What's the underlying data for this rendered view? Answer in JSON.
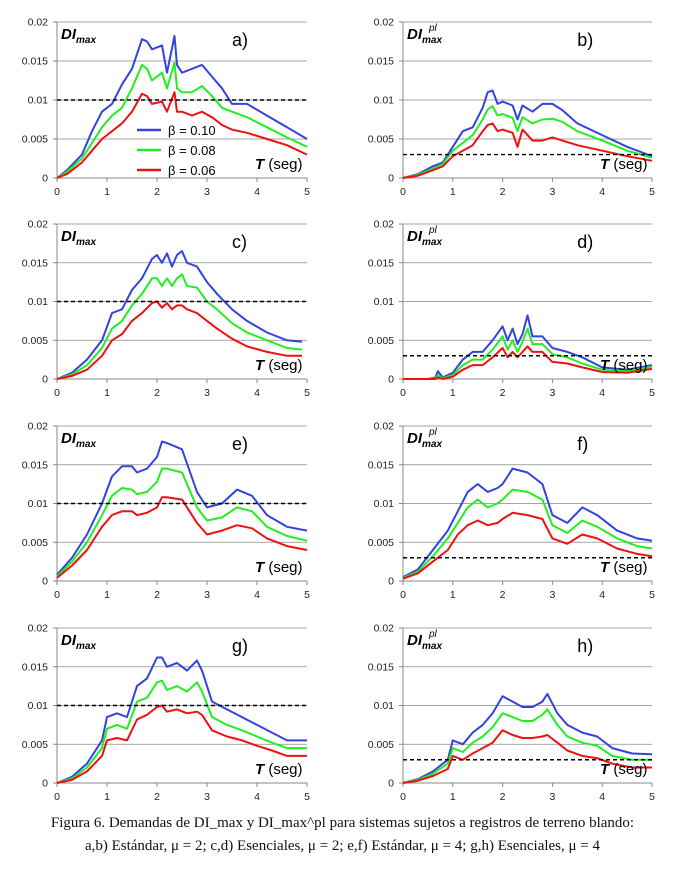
{
  "series_names": [
    "β = 0.10",
    "β = 0.08",
    "β = 0.06"
  ],
  "series_colors": [
    "#3344dd",
    "#22ee22",
    "#ee1111"
  ],
  "threshold_color": "#000000",
  "caption": {
    "line1": "Figura 6. Demandas de  DI_max  y  DI_max^pl  para sistemas sujetos a registros de terreno blando:",
    "line2": "a,b) Estándar, μ = 2; c,d) Esenciales, μ = 2; e,f) Estándar, μ = 4; g,h) Esenciales, μ = 4"
  },
  "chart_data": [
    {
      "id": "a",
      "type": "line",
      "label": "a)",
      "ylabel": "DImax",
      "xlabel": "T (seg)",
      "xlim": [
        0,
        5
      ],
      "ylim": [
        0,
        0.02
      ],
      "xticks": [
        "0",
        "1",
        "2",
        "3",
        "4",
        "5"
      ],
      "yticks": [
        "0",
        "0.005",
        "0.01",
        "0.015",
        "0.02"
      ],
      "threshold": 0.01,
      "legend": true,
      "x": [
        0,
        0.2,
        0.5,
        0.7,
        0.9,
        1.1,
        1.3,
        1.5,
        1.7,
        1.8,
        1.9,
        2.1,
        2.2,
        2.35,
        2.4,
        2.5,
        2.7,
        2.9,
        3.1,
        3.3,
        3.5,
        3.8,
        4.2,
        4.6,
        5
      ],
      "series": [
        {
          "name": "β = 0.10",
          "values": [
            0,
            0.001,
            0.003,
            0.006,
            0.0085,
            0.0095,
            0.012,
            0.014,
            0.0178,
            0.0175,
            0.0165,
            0.017,
            0.0135,
            0.0182,
            0.0145,
            0.0135,
            0.014,
            0.0145,
            0.013,
            0.0115,
            0.0095,
            0.0095,
            0.008,
            0.0065,
            0.005
          ]
        },
        {
          "name": "β = 0.08",
          "values": [
            0,
            0.0008,
            0.0025,
            0.0045,
            0.0065,
            0.008,
            0.009,
            0.0115,
            0.0145,
            0.014,
            0.0125,
            0.0135,
            0.0115,
            0.0148,
            0.0115,
            0.011,
            0.011,
            0.0118,
            0.0105,
            0.009,
            0.0085,
            0.0078,
            0.0065,
            0.0052,
            0.004
          ]
        },
        {
          "name": "β = 0.06",
          "values": [
            0,
            0.0005,
            0.002,
            0.0035,
            0.005,
            0.006,
            0.007,
            0.0085,
            0.0108,
            0.0105,
            0.0095,
            0.0098,
            0.0085,
            0.011,
            0.0085,
            0.0085,
            0.008,
            0.0085,
            0.0078,
            0.0068,
            0.0062,
            0.0058,
            0.005,
            0.0042,
            0.003
          ]
        }
      ]
    },
    {
      "id": "b",
      "type": "line",
      "label": "b)",
      "ylabel": "DImax pl",
      "xlabel": "T (seg)",
      "xlim": [
        0,
        5
      ],
      "ylim": [
        0,
        0.02
      ],
      "xticks": [
        "0",
        "1",
        "2",
        "3",
        "4",
        "5"
      ],
      "yticks": [
        "0",
        "0.005",
        "0.01",
        "0.015",
        "0.02"
      ],
      "threshold": 0.003,
      "legend": false,
      "x": [
        0,
        0.3,
        0.6,
        0.8,
        1.0,
        1.2,
        1.4,
        1.6,
        1.7,
        1.8,
        1.9,
        2.0,
        2.2,
        2.3,
        2.4,
        2.6,
        2.8,
        3.0,
        3.2,
        3.5,
        4.0,
        4.5,
        5
      ],
      "series": [
        {
          "name": "β = 0.10",
          "values": [
            0,
            0.0005,
            0.0015,
            0.002,
            0.004,
            0.006,
            0.0065,
            0.009,
            0.011,
            0.0112,
            0.0095,
            0.0098,
            0.0093,
            0.0075,
            0.0093,
            0.0085,
            0.0095,
            0.0095,
            0.0087,
            0.007,
            0.0055,
            0.004,
            0.0028
          ]
        },
        {
          "name": "β = 0.08",
          "values": [
            0,
            0.0004,
            0.0012,
            0.0018,
            0.0035,
            0.0045,
            0.0055,
            0.0075,
            0.0088,
            0.0092,
            0.008,
            0.0082,
            0.0077,
            0.006,
            0.0078,
            0.007,
            0.0075,
            0.0076,
            0.0072,
            0.006,
            0.0048,
            0.0035,
            0.0026
          ]
        },
        {
          "name": "β = 0.06",
          "values": [
            0,
            0.0003,
            0.001,
            0.0015,
            0.0028,
            0.0035,
            0.0042,
            0.006,
            0.0068,
            0.007,
            0.006,
            0.0062,
            0.0058,
            0.004,
            0.0062,
            0.0048,
            0.0048,
            0.0052,
            0.0048,
            0.0042,
            0.0035,
            0.0028,
            0.0022
          ]
        }
      ]
    },
    {
      "id": "c",
      "type": "line",
      "label": "c)",
      "ylabel": "DImax",
      "xlabel": "T (seg)",
      "xlim": [
        0,
        5
      ],
      "ylim": [
        0,
        0.02
      ],
      "xticks": [
        "0",
        "1",
        "2",
        "3",
        "4",
        "5"
      ],
      "yticks": [
        "0",
        "0.005",
        "0.01",
        "0.015",
        "0.02"
      ],
      "threshold": 0.01,
      "legend": false,
      "x": [
        0,
        0.3,
        0.6,
        0.9,
        1.1,
        1.3,
        1.5,
        1.7,
        1.9,
        2.0,
        2.1,
        2.2,
        2.3,
        2.4,
        2.5,
        2.6,
        2.8,
        3.0,
        3.2,
        3.5,
        3.8,
        4.2,
        4.6,
        4.9
      ],
      "series": [
        {
          "name": "β = 0.10",
          "values": [
            0,
            0.0008,
            0.0025,
            0.005,
            0.0085,
            0.009,
            0.0115,
            0.013,
            0.0155,
            0.016,
            0.015,
            0.0162,
            0.0145,
            0.016,
            0.0165,
            0.015,
            0.0145,
            0.0125,
            0.011,
            0.009,
            0.0075,
            0.006,
            0.005,
            0.0048
          ]
        },
        {
          "name": "β = 0.08",
          "values": [
            0,
            0.0006,
            0.0018,
            0.004,
            0.0065,
            0.0075,
            0.0095,
            0.011,
            0.013,
            0.013,
            0.012,
            0.013,
            0.012,
            0.013,
            0.0135,
            0.012,
            0.0118,
            0.01,
            0.009,
            0.0072,
            0.006,
            0.005,
            0.004,
            0.0038
          ]
        },
        {
          "name": "β = 0.06",
          "values": [
            0,
            0.0004,
            0.0012,
            0.003,
            0.005,
            0.0058,
            0.0075,
            0.0085,
            0.0098,
            0.01,
            0.0092,
            0.0098,
            0.009,
            0.0095,
            0.0095,
            0.009,
            0.0085,
            0.0075,
            0.0065,
            0.0052,
            0.0042,
            0.0035,
            0.003,
            0.003
          ]
        }
      ]
    },
    {
      "id": "d",
      "type": "line",
      "label": "d)",
      "ylabel": "DImax pl",
      "xlabel": "T (seg)",
      "xlim": [
        0,
        5
      ],
      "ylim": [
        0,
        0.02
      ],
      "xticks": [
        "0",
        "1",
        "2",
        "3",
        "4",
        "5"
      ],
      "yticks": [
        "0",
        "0.005",
        "0.01",
        "0.015",
        "0.02"
      ],
      "threshold": 0.003,
      "legend": false,
      "x": [
        0,
        0.5,
        0.65,
        0.7,
        0.8,
        1.0,
        1.2,
        1.4,
        1.6,
        1.8,
        2.0,
        2.1,
        2.2,
        2.3,
        2.4,
        2.5,
        2.6,
        2.8,
        3.0,
        3.3,
        3.6,
        4.0,
        4.5,
        5
      ],
      "series": [
        {
          "name": "β = 0.10",
          "values": [
            0,
            0,
            0.0002,
            0.001,
            0.0002,
            0.0008,
            0.0025,
            0.0035,
            0.0035,
            0.005,
            0.0068,
            0.005,
            0.0065,
            0.0045,
            0.0058,
            0.0082,
            0.0055,
            0.0055,
            0.004,
            0.0035,
            0.0028,
            0.0015,
            0.0012,
            0.0018
          ]
        },
        {
          "name": "β = 0.08",
          "values": [
            0,
            0,
            0.0001,
            0.0005,
            0.0001,
            0.0005,
            0.0018,
            0.0025,
            0.0025,
            0.0038,
            0.0055,
            0.0038,
            0.005,
            0.0035,
            0.0048,
            0.0065,
            0.0045,
            0.0045,
            0.0032,
            0.0028,
            0.002,
            0.0012,
            0.001,
            0.0016
          ]
        },
        {
          "name": "β = 0.06",
          "values": [
            0,
            0,
            0,
            0.0002,
            0,
            0.0003,
            0.0012,
            0.0018,
            0.0018,
            0.0028,
            0.004,
            0.0028,
            0.0035,
            0.0028,
            0.0035,
            0.0042,
            0.0035,
            0.0035,
            0.0022,
            0.002,
            0.0015,
            0.0009,
            0.0008,
            0.0013
          ]
        }
      ]
    },
    {
      "id": "e",
      "type": "line",
      "label": "e)",
      "ylabel": "DImax",
      "xlabel": "T (seg)",
      "xlim": [
        0,
        5
      ],
      "ylim": [
        0,
        0.02
      ],
      "xticks": [
        "0",
        "1",
        "2",
        "3",
        "4",
        "5"
      ],
      "yticks": [
        "0",
        "0.005",
        "0.01",
        "0.015",
        "0.02"
      ],
      "threshold": 0.01,
      "legend": false,
      "x": [
        0,
        0.3,
        0.6,
        0.9,
        1.1,
        1.3,
        1.5,
        1.6,
        1.8,
        2.0,
        2.1,
        2.2,
        2.5,
        2.8,
        3.0,
        3.3,
        3.6,
        3.9,
        4.2,
        4.6,
        5
      ],
      "series": [
        {
          "name": "β = 0.10",
          "values": [
            0.0008,
            0.003,
            0.006,
            0.01,
            0.0135,
            0.0148,
            0.0148,
            0.014,
            0.0145,
            0.016,
            0.018,
            0.0178,
            0.017,
            0.0115,
            0.0095,
            0.01,
            0.0118,
            0.011,
            0.0085,
            0.007,
            0.0065
          ]
        },
        {
          "name": "β = 0.08",
          "values": [
            0.0006,
            0.0025,
            0.005,
            0.0085,
            0.011,
            0.012,
            0.0118,
            0.0112,
            0.0115,
            0.0128,
            0.0145,
            0.0145,
            0.014,
            0.0095,
            0.0078,
            0.0082,
            0.0095,
            0.009,
            0.007,
            0.0058,
            0.0052
          ]
        },
        {
          "name": "β = 0.06",
          "values": [
            0.0004,
            0.002,
            0.004,
            0.007,
            0.0085,
            0.009,
            0.009,
            0.0085,
            0.0088,
            0.0095,
            0.0108,
            0.0108,
            0.0105,
            0.0075,
            0.006,
            0.0065,
            0.0072,
            0.0068,
            0.0055,
            0.0045,
            0.004
          ]
        }
      ]
    },
    {
      "id": "f",
      "type": "line",
      "label": "f)",
      "ylabel": "DImax pl",
      "xlabel": "T (seg)",
      "xlim": [
        0,
        5
      ],
      "ylim": [
        0,
        0.02
      ],
      "xticks": [
        "0",
        "1",
        "2",
        "3",
        "4",
        "5"
      ],
      "yticks": [
        "0",
        "0.005",
        "0.01",
        "0.015",
        "0.02"
      ],
      "threshold": 0.003,
      "legend": false,
      "x": [
        0,
        0.3,
        0.6,
        0.9,
        1.1,
        1.3,
        1.5,
        1.7,
        1.9,
        2.0,
        2.2,
        2.5,
        2.8,
        3.0,
        3.3,
        3.6,
        3.9,
        4.3,
        4.7,
        5
      ],
      "series": [
        {
          "name": "β = 0.10",
          "values": [
            0.0005,
            0.0015,
            0.004,
            0.0065,
            0.009,
            0.0115,
            0.0125,
            0.0115,
            0.012,
            0.0125,
            0.0145,
            0.014,
            0.0125,
            0.0085,
            0.0075,
            0.0095,
            0.0085,
            0.0065,
            0.0055,
            0.0052
          ]
        },
        {
          "name": "β = 0.08",
          "values": [
            0.0004,
            0.0012,
            0.0032,
            0.0055,
            0.0075,
            0.0095,
            0.0105,
            0.0095,
            0.01,
            0.0105,
            0.0118,
            0.0115,
            0.0105,
            0.0072,
            0.0062,
            0.0078,
            0.007,
            0.0055,
            0.0045,
            0.0042
          ]
        },
        {
          "name": "β = 0.06",
          "values": [
            0.0003,
            0.001,
            0.0025,
            0.004,
            0.006,
            0.0072,
            0.0078,
            0.0072,
            0.0075,
            0.008,
            0.0088,
            0.0085,
            0.008,
            0.0055,
            0.0048,
            0.006,
            0.0055,
            0.0042,
            0.0035,
            0.0032
          ]
        }
      ]
    },
    {
      "id": "g",
      "type": "line",
      "label": "g)",
      "ylabel": "DImax",
      "xlabel": "T (seg)",
      "xlim": [
        0,
        5
      ],
      "ylim": [
        0,
        0.02
      ],
      "xticks": [
        "0",
        "1",
        "2",
        "3",
        "4",
        "5"
      ],
      "yticks": [
        "0",
        "0.005",
        "0.01",
        "0.015",
        "0.02"
      ],
      "threshold": 0.01,
      "legend": false,
      "x": [
        0,
        0.3,
        0.6,
        0.9,
        1.0,
        1.2,
        1.4,
        1.6,
        1.8,
        2.0,
        2.1,
        2.2,
        2.4,
        2.6,
        2.8,
        2.9,
        3.1,
        3.4,
        3.7,
        4.0,
        4.3,
        4.6,
        5
      ],
      "series": [
        {
          "name": "β = 0.10",
          "values": [
            0,
            0.0008,
            0.0025,
            0.0055,
            0.0085,
            0.009,
            0.0085,
            0.0125,
            0.0135,
            0.0162,
            0.0162,
            0.015,
            0.0155,
            0.0145,
            0.0158,
            0.0145,
            0.0105,
            0.0095,
            0.0085,
            0.0075,
            0.0065,
            0.0055,
            0.0055
          ]
        },
        {
          "name": "β = 0.08",
          "values": [
            0,
            0.0006,
            0.002,
            0.0045,
            0.007,
            0.0075,
            0.007,
            0.0105,
            0.011,
            0.013,
            0.0132,
            0.012,
            0.0125,
            0.0118,
            0.013,
            0.0118,
            0.0085,
            0.0075,
            0.0068,
            0.006,
            0.0052,
            0.0045,
            0.0045
          ]
        },
        {
          "name": "β = 0.06",
          "values": [
            0,
            0.0004,
            0.0015,
            0.0035,
            0.0055,
            0.0058,
            0.0055,
            0.0082,
            0.0088,
            0.0098,
            0.01,
            0.0092,
            0.0095,
            0.009,
            0.0092,
            0.0088,
            0.0068,
            0.006,
            0.0055,
            0.0048,
            0.0042,
            0.0035,
            0.0035
          ]
        }
      ]
    },
    {
      "id": "h",
      "type": "line",
      "label": "h)",
      "ylabel": "DImax pl",
      "xlabel": "T (seg)",
      "xlim": [
        0,
        5
      ],
      "ylim": [
        0,
        0.02
      ],
      "xticks": [
        "0",
        "1",
        "2",
        "3",
        "4",
        "5"
      ],
      "yticks": [
        "0",
        "0.005",
        "0.01",
        "0.015",
        "0.02"
      ],
      "threshold": 0.003,
      "legend": false,
      "x": [
        0,
        0.3,
        0.6,
        0.9,
        1.0,
        1.2,
        1.4,
        1.6,
        1.8,
        2.0,
        2.2,
        2.4,
        2.6,
        2.8,
        2.9,
        3.1,
        3.3,
        3.6,
        3.9,
        4.2,
        4.6,
        5
      ],
      "series": [
        {
          "name": "β = 0.10",
          "values": [
            0,
            0.0005,
            0.0015,
            0.003,
            0.0055,
            0.005,
            0.0065,
            0.0075,
            0.009,
            0.0112,
            0.0105,
            0.0098,
            0.0098,
            0.0105,
            0.0115,
            0.009,
            0.0075,
            0.0065,
            0.006,
            0.0045,
            0.0038,
            0.0037
          ]
        },
        {
          "name": "β = 0.08",
          "values": [
            0,
            0.0004,
            0.0012,
            0.0025,
            0.0045,
            0.004,
            0.0052,
            0.006,
            0.0072,
            0.009,
            0.0085,
            0.008,
            0.008,
            0.0088,
            0.0095,
            0.0075,
            0.006,
            0.0052,
            0.0048,
            0.0035,
            0.003,
            0.003
          ]
        },
        {
          "name": "β = 0.06",
          "values": [
            0,
            0.0003,
            0.0009,
            0.0018,
            0.0035,
            0.003,
            0.0038,
            0.0045,
            0.0052,
            0.0068,
            0.0062,
            0.0058,
            0.0058,
            0.006,
            0.0062,
            0.0052,
            0.0042,
            0.0035,
            0.0032,
            0.0025,
            0.002,
            0.002
          ]
        }
      ]
    }
  ]
}
